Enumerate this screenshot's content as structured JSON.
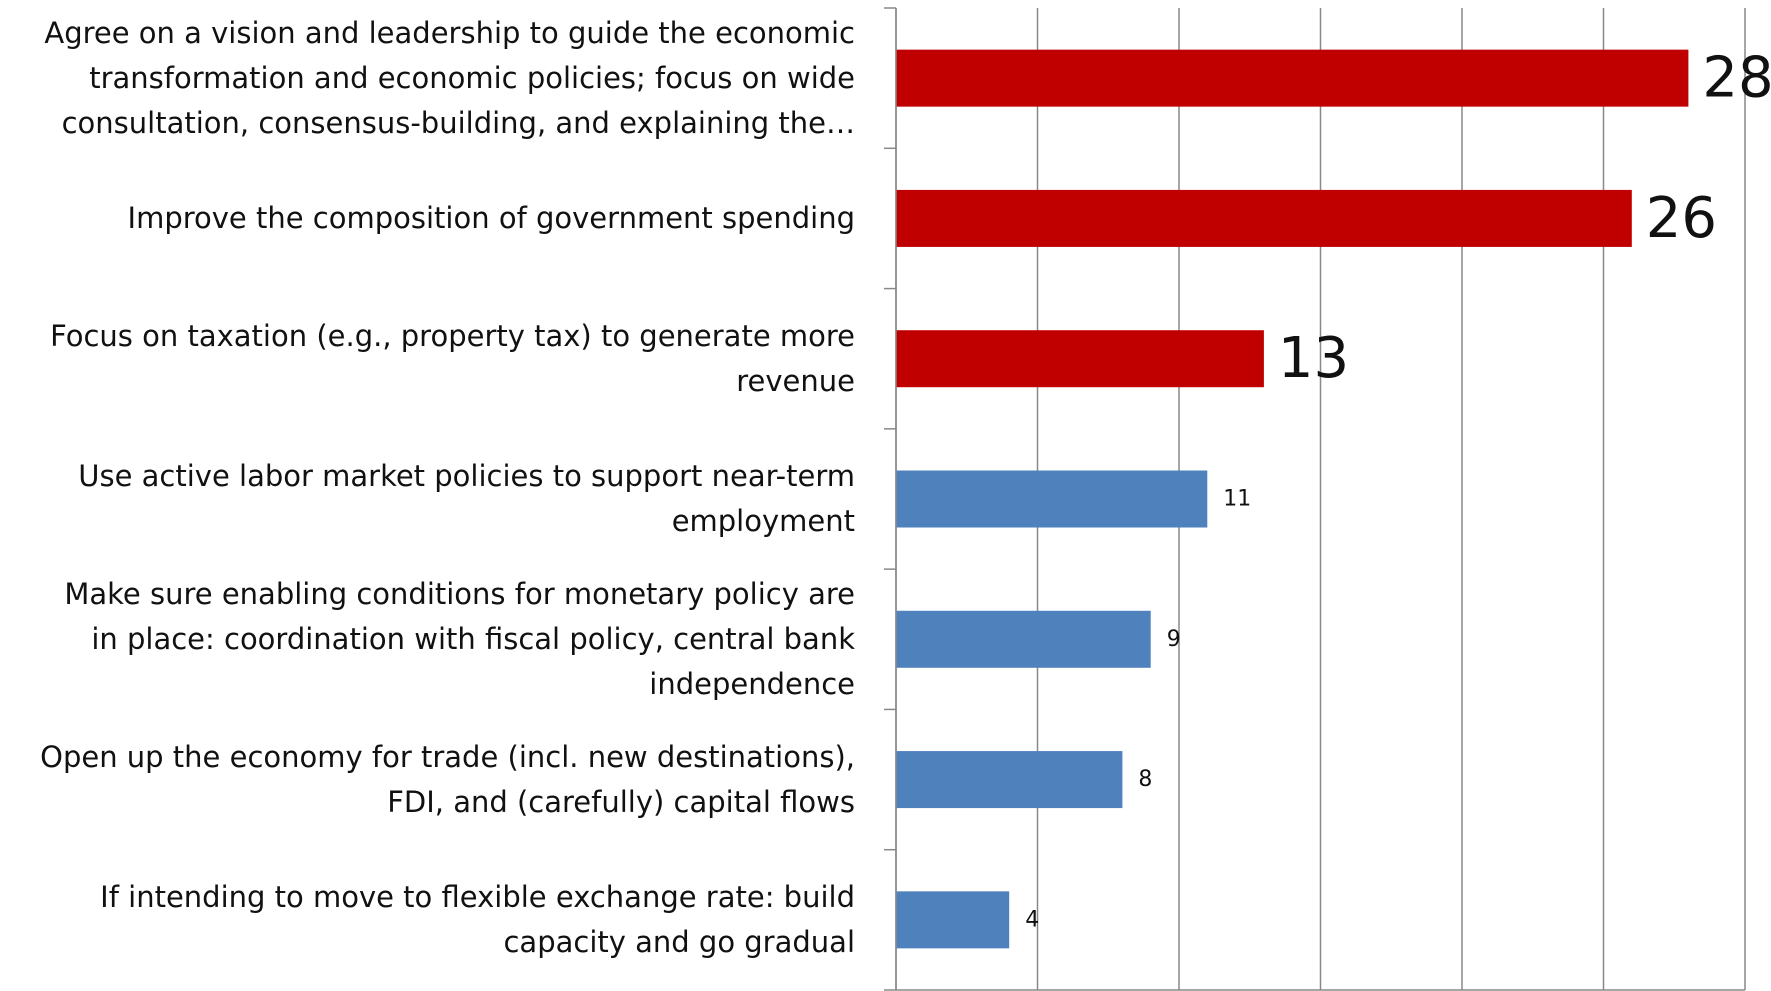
{
  "chart_data": {
    "type": "bar",
    "orientation": "horizontal",
    "categories": [
      "Agree on a vision and leadership to guide the economic transformation and economic policies; focus on wide consultation, consensus-building, and explaining the…",
      "Improve the composition of government spending",
      "Focus on taxation (e.g., property tax) to generate more revenue",
      "Use active labor market policies to support near-term employment",
      "Make sure enabling conditions for monetary policy are in place: coordination with fiscal policy, central bank independence",
      "Open up the economy for trade (incl. new destinations), FDI, and (carefully) capital flows",
      "If intending to move to flexible exchange rate: build capacity and go gradual"
    ],
    "category_lines": [
      [
        "Agree on a vision and leadership to guide the economic",
        "transformation and economic policies; focus on wide",
        "consultation, consensus-building, and explaining the…"
      ],
      [
        "Improve the composition of government spending"
      ],
      [
        "Focus on taxation (e.g., property tax) to generate more",
        "revenue"
      ],
      [
        "Use active labor market policies to support near-term",
        "employment"
      ],
      [
        "Make sure enabling conditions for monetary policy are",
        "in place: coordination with fiscal policy, central bank",
        "independence"
      ],
      [
        "Open up the economy for trade (incl. new destinations),",
        "FDI, and (carefully) capital flows"
      ],
      [
        "If intending to move to flexible exchange rate: build",
        "capacity and go gradual"
      ]
    ],
    "values": [
      28,
      26,
      13,
      11,
      9,
      8,
      4
    ],
    "data_labels": [
      "28",
      "26",
      "13",
      "11",
      "9",
      "8",
      "4"
    ],
    "highlighted": [
      true,
      true,
      true,
      false,
      false,
      false,
      false
    ],
    "xlim": [
      0,
      30
    ],
    "grid": true,
    "legend": "none",
    "title": "",
    "xlabel": "",
    "ylabel": "",
    "colors": {
      "highlight": "#c00000",
      "normal": "#4f81bd",
      "grid": "#888888",
      "label": "#111111"
    }
  }
}
